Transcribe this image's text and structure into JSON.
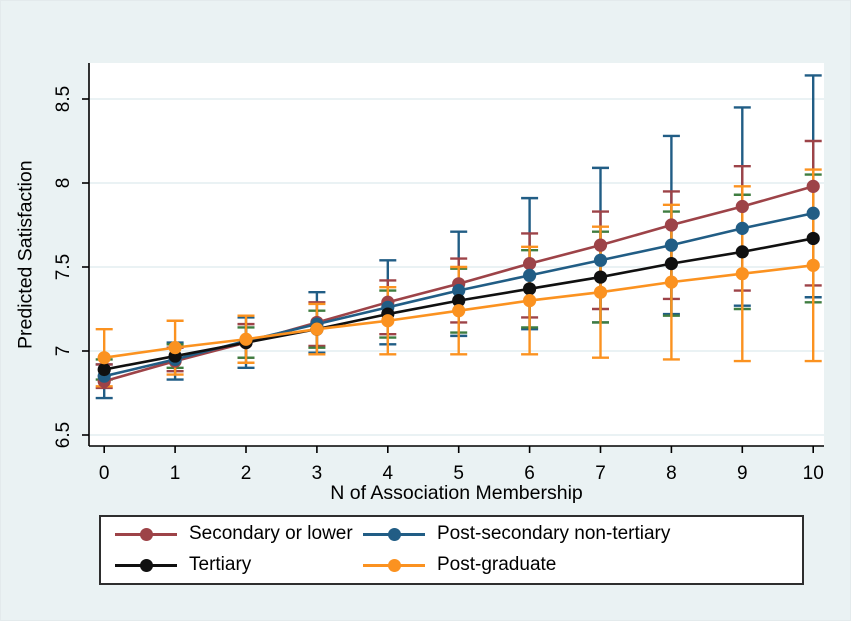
{
  "figure": {
    "background": "#eaf2f3",
    "plot_background": "#ffffff",
    "grid_color": "#e4edf0",
    "axis_color": "#000000",
    "legend_border_color": "#2e2e2e"
  },
  "chart_data": {
    "type": "line",
    "title": "",
    "xlabel": "N of Association Membership",
    "ylabel": "Predicted Satisfaction",
    "grid": true,
    "legend_position": "bottom",
    "xlim": [
      -0.22,
      10.15
    ],
    "ylim": [
      6.43,
      8.72
    ],
    "x": [
      0,
      1,
      2,
      3,
      4,
      5,
      6,
      7,
      8,
      9,
      10
    ],
    "x_tick_labels": [
      "0",
      "1",
      "2",
      "3",
      "4",
      "5",
      "6",
      "7",
      "8",
      "9",
      "10"
    ],
    "y_ticks": [
      6.5,
      7,
      7.5,
      8,
      8.5
    ],
    "y_tick_labels": [
      "6.5",
      "7",
      "7.5",
      "8",
      "8.5"
    ],
    "series": [
      {
        "name": "Secondary or lower",
        "color": "#9d4348",
        "ci_color": "#215d85",
        "values": [
          6.82,
          6.94,
          7.05,
          7.17,
          7.29,
          7.4,
          7.52,
          7.63,
          7.75,
          7.86,
          7.98
        ],
        "ci_low": [
          6.72,
          6.83,
          6.9,
          6.99,
          7.04,
          7.09,
          7.13,
          7.17,
          7.22,
          7.27,
          7.32
        ],
        "ci_high": [
          6.92,
          7.05,
          7.2,
          7.35,
          7.54,
          7.71,
          7.91,
          8.09,
          8.28,
          8.45,
          8.64
        ]
      },
      {
        "name": "Post-secondary non-tertiary",
        "color": "#215d85",
        "ci_color": "#9d4348",
        "values": [
          6.85,
          6.95,
          7.06,
          7.16,
          7.26,
          7.36,
          7.45,
          7.54,
          7.63,
          7.73,
          7.82
        ],
        "ci_low": [
          6.78,
          6.88,
          6.96,
          7.03,
          7.1,
          7.17,
          7.2,
          7.25,
          7.31,
          7.36,
          7.39
        ],
        "ci_high": [
          6.92,
          7.02,
          7.16,
          7.29,
          7.42,
          7.55,
          7.7,
          7.83,
          7.95,
          8.1,
          8.25
        ]
      },
      {
        "name": "Tertiary",
        "color": "#101010",
        "ci_color": "#3f7d40",
        "values": [
          6.89,
          6.97,
          7.05,
          7.13,
          7.22,
          7.3,
          7.37,
          7.44,
          7.52,
          7.59,
          7.67
        ],
        "ci_low": [
          6.83,
          6.9,
          6.96,
          7.02,
          7.08,
          7.11,
          7.14,
          7.17,
          7.21,
          7.25,
          7.29
        ],
        "ci_high": [
          6.95,
          7.04,
          7.14,
          7.24,
          7.36,
          7.49,
          7.6,
          7.71,
          7.83,
          7.93,
          8.05
        ]
      },
      {
        "name": "Post-graduate",
        "color": "#fb9220",
        "ci_color": "#fb9220",
        "values": [
          6.96,
          7.02,
          7.07,
          7.13,
          7.18,
          7.24,
          7.3,
          7.35,
          7.41,
          7.46,
          7.51
        ],
        "ci_low": [
          6.79,
          6.86,
          6.93,
          6.98,
          6.98,
          6.98,
          6.98,
          6.96,
          6.95,
          6.94,
          6.94
        ],
        "ci_high": [
          7.13,
          7.18,
          7.21,
          7.28,
          7.38,
          7.5,
          7.62,
          7.74,
          7.87,
          7.98,
          8.08
        ]
      }
    ]
  }
}
